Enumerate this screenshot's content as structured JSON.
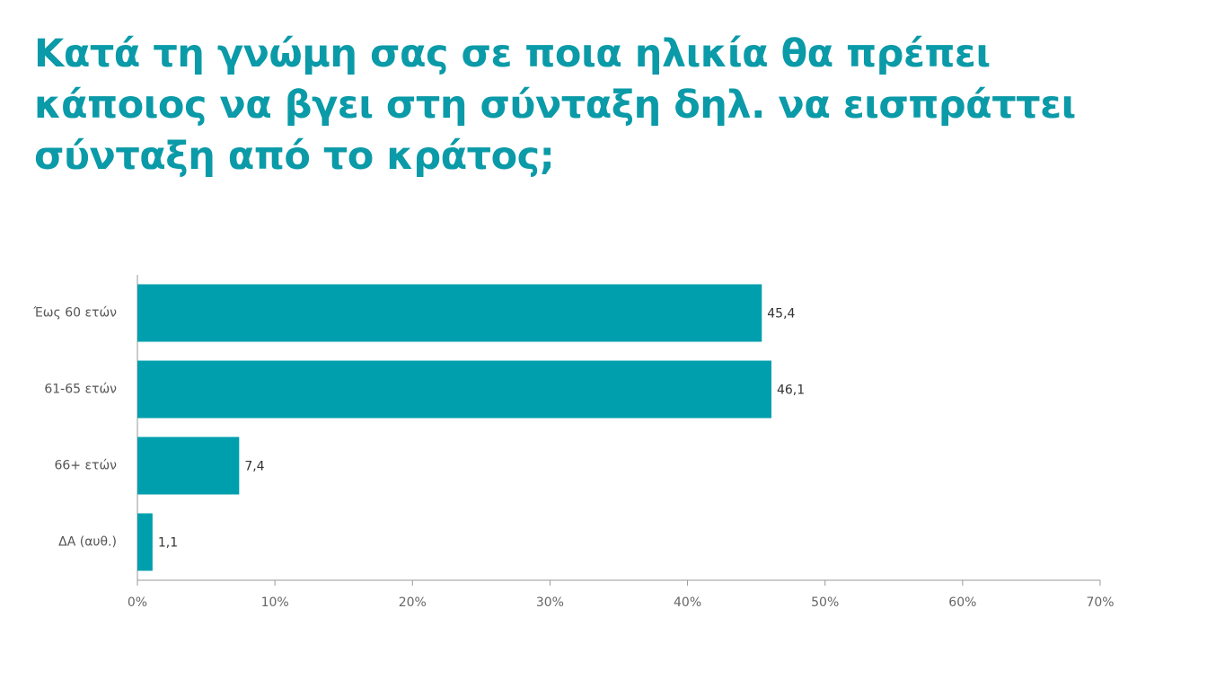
{
  "chart_data": {
    "type": "barh",
    "title": [
      "Κατά τη γνώμη σας σε ποια ηλικία θα πρέπει",
      "κάποιος να βγει στη σύνταξη δηλ. να εισπράττει",
      "σύνταξη από το κράτος;"
    ],
    "categories": [
      "Έως 60 ετών",
      "61-65 ετών",
      "66+ ετών",
      "ΔΑ (αυθ.)"
    ],
    "values": [
      45.4,
      46.1,
      7.4,
      1.1
    ],
    "value_labels": [
      "45,4",
      "46,1",
      "7,4",
      "1,1"
    ],
    "color": "#009fae",
    "xlim": [
      0,
      70
    ],
    "xticks": [
      {
        "value": 0,
        "label": "0%"
      },
      {
        "value": 10,
        "label": "10%"
      },
      {
        "value": 20,
        "label": "20%"
      },
      {
        "value": 30,
        "label": "30%"
      },
      {
        "value": 40,
        "label": "40%"
      },
      {
        "value": 50,
        "label": "50%"
      },
      {
        "value": 60,
        "label": "60%"
      },
      {
        "value": 70,
        "label": "70%"
      }
    ],
    "grid": false
  }
}
